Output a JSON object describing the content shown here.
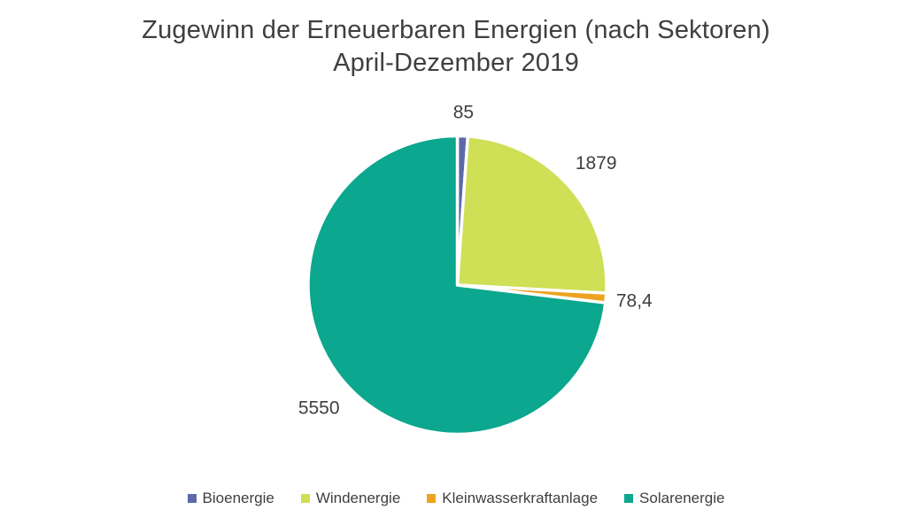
{
  "title": {
    "line1": "Zugewinn der Erneuerbaren Energien (nach Sektoren)",
    "line2": "April-Dezember 2019"
  },
  "colors": {
    "background": "#ffffff",
    "title_text": "#3f3f3f",
    "label_text": "#404040",
    "slice_border": "#ffffff"
  },
  "chart_data": {
    "type": "pie",
    "title": "Zugewinn der Erneuerbaren Energien (nach Sektoren) April-Dezember 2019",
    "legend_position": "bottom",
    "start_angle_deg": 0,
    "direction": "clockwise",
    "total": 7592.4,
    "slices": [
      {
        "label": "Bioenergie",
        "value": 85,
        "value_label": "85",
        "color": "#5B69A8"
      },
      {
        "label": "Windenergie",
        "value": 1879,
        "value_label": "1879",
        "color": "#CFDF56"
      },
      {
        "label": "Kleinwasserkraftanlage",
        "value": 78.4,
        "value_label": "78,4",
        "color": "#EEA320"
      },
      {
        "label": "Solarenergie",
        "value": 5550,
        "value_label": "5550",
        "color": "#0BA78E"
      }
    ]
  }
}
